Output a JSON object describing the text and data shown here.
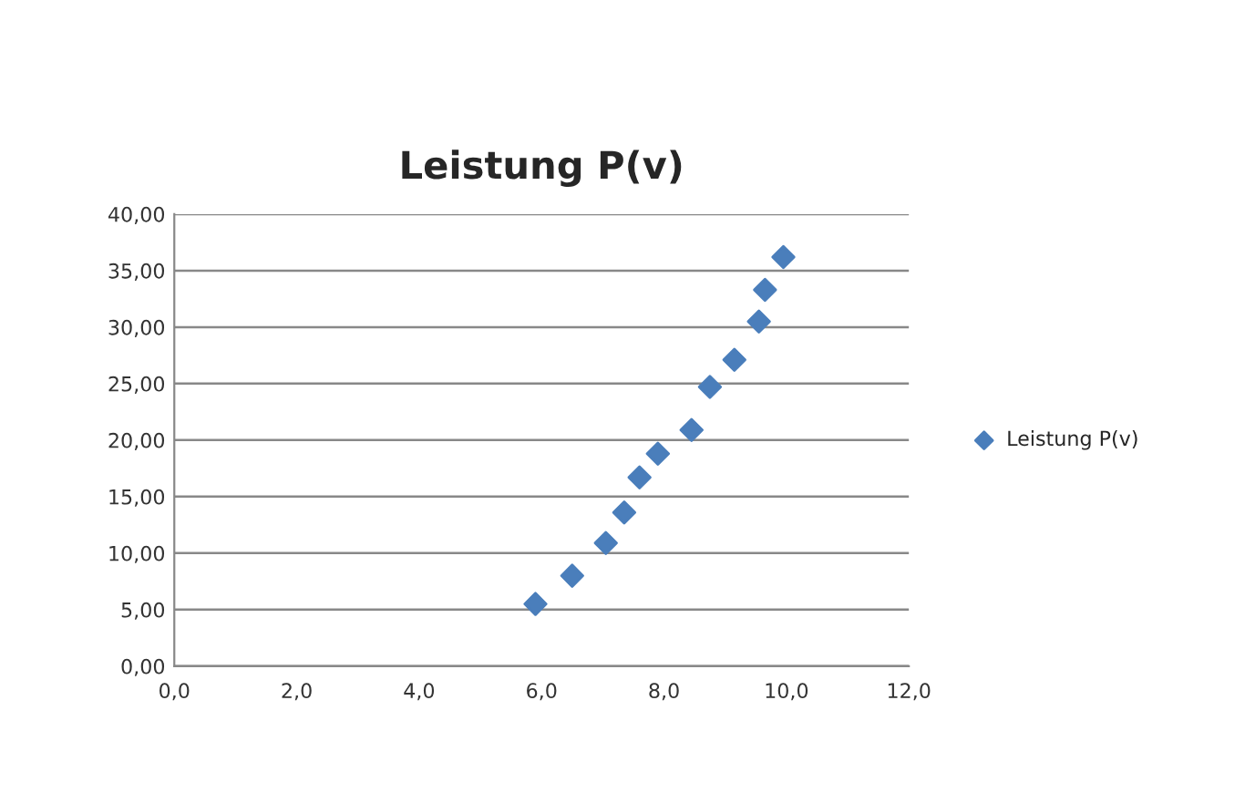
{
  "chart_data": {
    "type": "scatter",
    "title": "Leistung P(v)",
    "series": [
      {
        "name": "Leistung P(v)",
        "color": "#4a7ebb",
        "x": [
          5.9,
          6.5,
          7.05,
          7.35,
          7.6,
          7.9,
          8.45,
          8.75,
          9.15,
          9.55,
          9.65,
          9.95
        ],
        "values": [
          5.5,
          8.0,
          10.9,
          13.6,
          16.7,
          18.8,
          20.9,
          24.7,
          27.1,
          30.5,
          33.3,
          36.2
        ]
      }
    ],
    "xlim": [
      0,
      12
    ],
    "ylim": [
      0,
      40
    ],
    "xticks": [
      {
        "value": 0,
        "label": "0,0"
      },
      {
        "value": 2,
        "label": "2,0"
      },
      {
        "value": 4,
        "label": "4,0"
      },
      {
        "value": 6,
        "label": "6,0"
      },
      {
        "value": 8,
        "label": "8,0"
      },
      {
        "value": 10,
        "label": "10,0"
      },
      {
        "value": 12,
        "label": "12,0"
      }
    ],
    "yticks": [
      {
        "value": 0,
        "label": "0,00"
      },
      {
        "value": 5,
        "label": "5,00"
      },
      {
        "value": 10,
        "label": "10,00"
      },
      {
        "value": 15,
        "label": "15,00"
      },
      {
        "value": 20,
        "label": "20,00"
      },
      {
        "value": 25,
        "label": "25,00"
      },
      {
        "value": 30,
        "label": "30,00"
      },
      {
        "value": 35,
        "label": "35,00"
      },
      {
        "value": 40,
        "label": "40,00"
      }
    ],
    "grid": "y",
    "legend": "right",
    "marker": "diamond"
  }
}
